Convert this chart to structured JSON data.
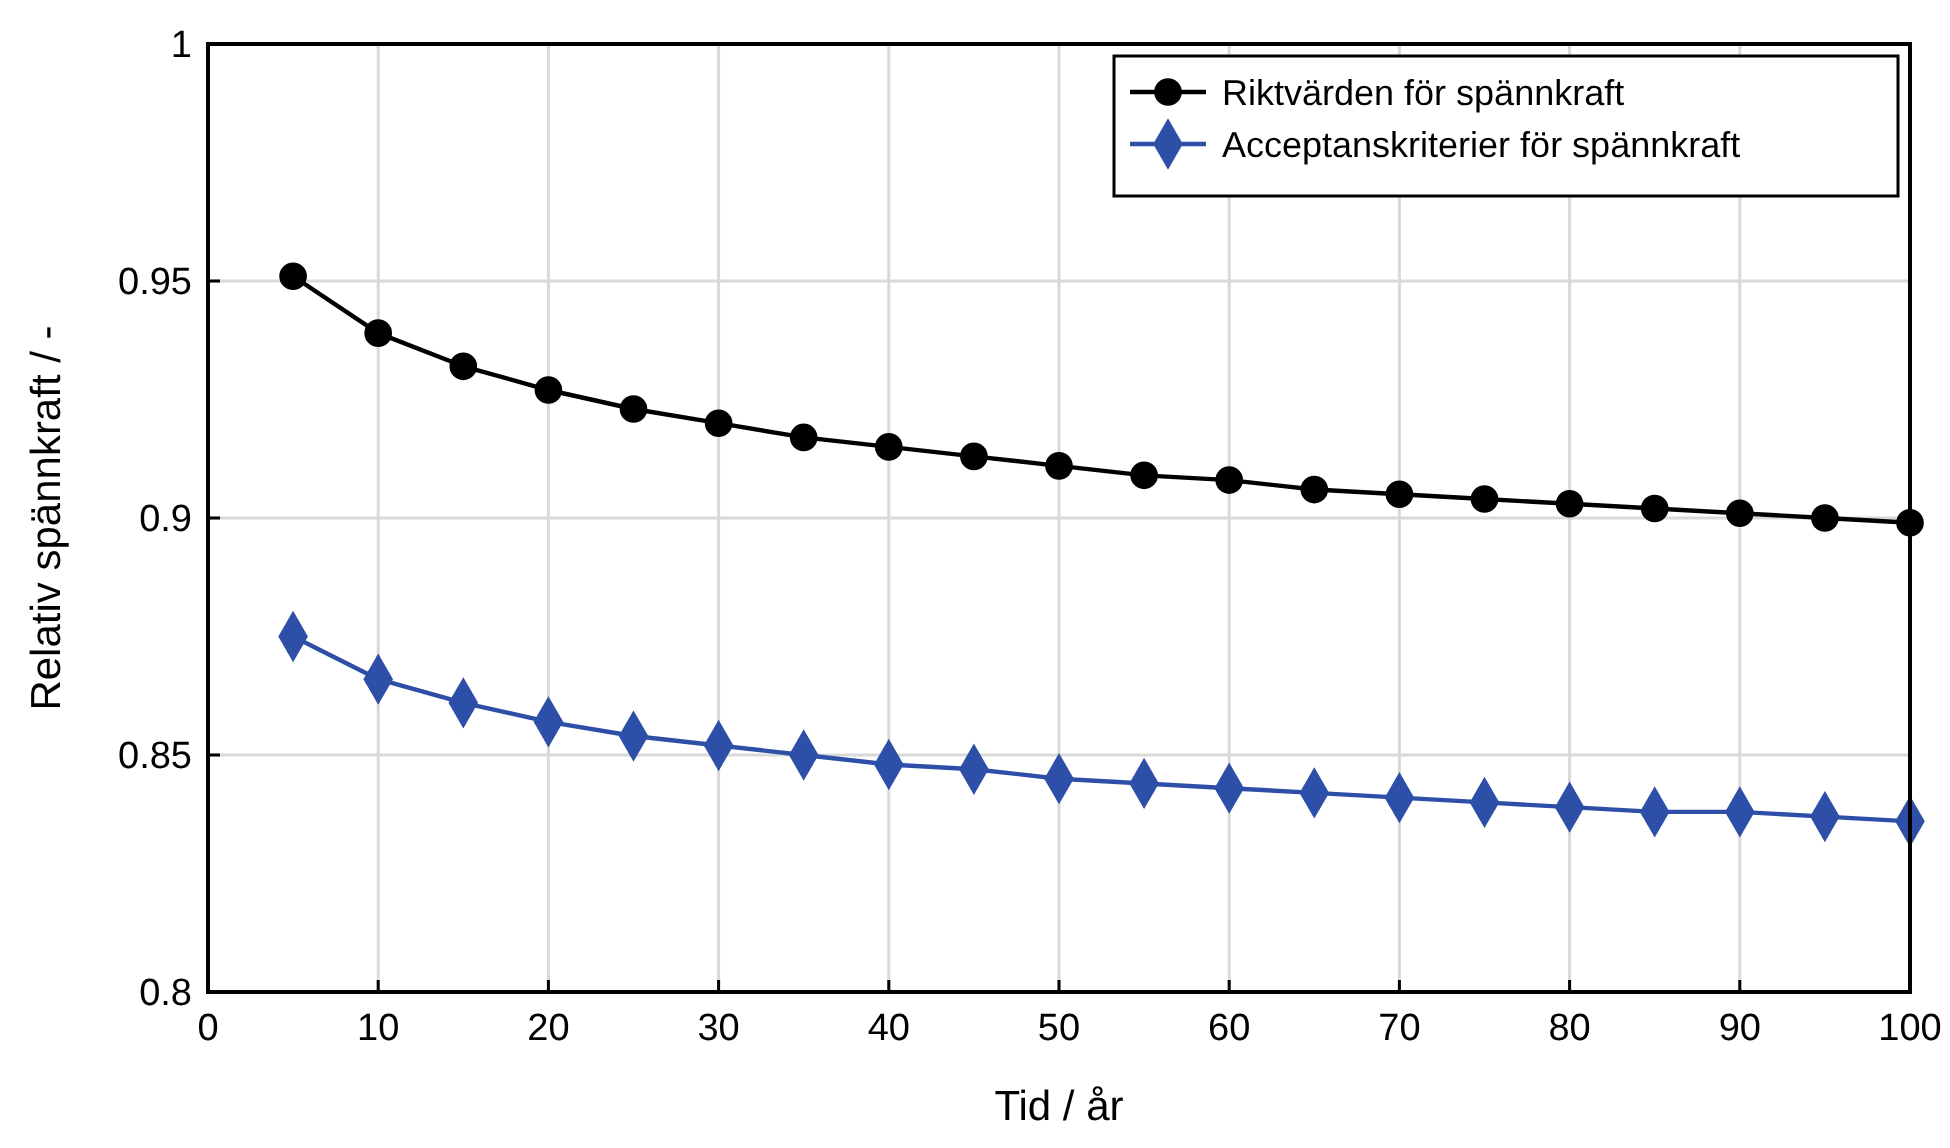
{
  "chart_data": {
    "type": "line",
    "xlabel": "Tid / år",
    "ylabel": "Relativ spännkraft / -",
    "x": [
      5,
      10,
      15,
      20,
      25,
      30,
      35,
      40,
      45,
      50,
      55,
      60,
      65,
      70,
      75,
      80,
      85,
      90,
      95,
      100
    ],
    "series": [
      {
        "name": "Riktvärden för spännkraft",
        "color": "#000000",
        "marker": "circle",
        "values": [
          0.951,
          0.939,
          0.932,
          0.927,
          0.923,
          0.92,
          0.917,
          0.915,
          0.913,
          0.911,
          0.909,
          0.908,
          0.906,
          0.905,
          0.904,
          0.903,
          0.902,
          0.901,
          0.9,
          0.899
        ]
      },
      {
        "name": "Acceptanskriterier för spännkraft",
        "color": "#2e4fa8",
        "marker": "diamond",
        "values": [
          0.875,
          0.866,
          0.861,
          0.857,
          0.854,
          0.852,
          0.85,
          0.848,
          0.847,
          0.845,
          0.844,
          0.843,
          0.842,
          0.841,
          0.84,
          0.839,
          0.838,
          0.838,
          0.837,
          0.836
        ]
      }
    ],
    "xlim": [
      0,
      100
    ],
    "xticks": [
      0,
      10,
      20,
      30,
      40,
      50,
      60,
      70,
      80,
      90,
      100
    ],
    "ylim": [
      0.8,
      1
    ],
    "yticks": [
      0.8,
      0.85,
      0.9,
      0.95,
      1
    ],
    "grid": true,
    "legend": "top right",
    "line_style": "solid"
  }
}
